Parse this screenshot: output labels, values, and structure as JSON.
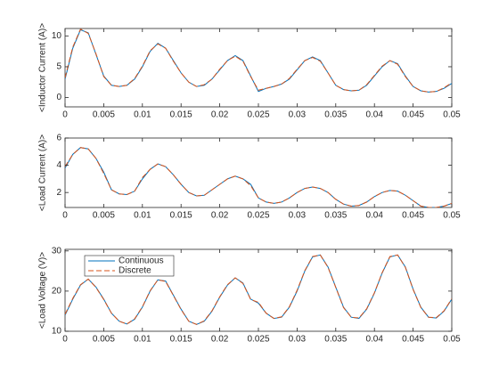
{
  "chart_data": [
    {
      "type": "line",
      "ylabel": "<Inductor Current (A)>",
      "x": [
        0,
        0.001,
        0.002,
        0.003,
        0.004,
        0.005,
        0.006,
        0.007,
        0.008,
        0.009,
        0.01,
        0.011,
        0.012,
        0.013,
        0.014,
        0.015,
        0.016,
        0.017,
        0.018,
        0.019,
        0.02,
        0.021,
        0.022,
        0.023,
        0.024,
        0.025,
        0.026,
        0.027,
        0.028,
        0.029,
        0.03,
        0.031,
        0.032,
        0.033,
        0.034,
        0.035,
        0.036,
        0.037,
        0.038,
        0.039,
        0.04,
        0.041,
        0.042,
        0.043,
        0.044,
        0.045,
        0.046,
        0.047,
        0.048,
        0.049,
        0.05
      ],
      "series": [
        {
          "name": "Continuous",
          "color": "#0072BD",
          "linestyle": "solid",
          "values": [
            3,
            8,
            11,
            10.5,
            7,
            3.5,
            2,
            1.8,
            2,
            3,
            5,
            7.5,
            8.8,
            8,
            6,
            4,
            2.5,
            1.8,
            2,
            3,
            4.5,
            6,
            6.8,
            6,
            3.5,
            1,
            1.5,
            1.8,
            2.2,
            3,
            4.5,
            6,
            6.6,
            6,
            4,
            2,
            1.3,
            1.1,
            1.2,
            2,
            3.5,
            5,
            6,
            5.5,
            3.5,
            1.8,
            1.1,
            0.9,
            1,
            1.5,
            2.3
          ]
        },
        {
          "name": "Discrete",
          "color": "#D95319",
          "linestyle": "dashed",
          "values": [
            3.2,
            8.2,
            11.1,
            10.4,
            7.1,
            3.4,
            2,
            1.8,
            2,
            3.1,
            5.1,
            7.6,
            8.7,
            8,
            5.9,
            4,
            2.5,
            1.8,
            2.1,
            3,
            4.6,
            6,
            6.7,
            5.9,
            3.4,
            1.2,
            1.5,
            1.8,
            2.2,
            3.1,
            4.6,
            6,
            6.5,
            5.9,
            4,
            2,
            1.3,
            1.1,
            1.2,
            2.1,
            3.6,
            5.1,
            6,
            5.4,
            3.4,
            1.8,
            1.1,
            0.9,
            1,
            1.6,
            2.4
          ]
        }
      ],
      "xlim": [
        0,
        0.05
      ],
      "xticks": [
        0,
        0.005,
        0.01,
        0.015,
        0.02,
        0.025,
        0.03,
        0.035,
        0.04,
        0.045,
        0.05
      ],
      "ylim": [
        -1.5,
        11.2
      ],
      "yticks": [
        0,
        5,
        10
      ]
    },
    {
      "type": "line",
      "ylabel": "<Load Current (A)>",
      "x": [
        0,
        0.001,
        0.002,
        0.003,
        0.004,
        0.005,
        0.006,
        0.007,
        0.008,
        0.009,
        0.01,
        0.011,
        0.012,
        0.013,
        0.014,
        0.015,
        0.016,
        0.017,
        0.018,
        0.019,
        0.02,
        0.021,
        0.022,
        0.023,
        0.024,
        0.025,
        0.026,
        0.027,
        0.028,
        0.029,
        0.03,
        0.031,
        0.032,
        0.033,
        0.034,
        0.035,
        0.036,
        0.037,
        0.038,
        0.039,
        0.04,
        0.041,
        0.042,
        0.043,
        0.044,
        0.045,
        0.046,
        0.047,
        0.048,
        0.049,
        0.05
      ],
      "series": [
        {
          "name": "Continuous",
          "color": "#0072BD",
          "linestyle": "solid",
          "values": [
            3.8,
            4.8,
            5.3,
            5.2,
            4.5,
            3.5,
            2.2,
            1.9,
            1.85,
            2.1,
            3,
            3.7,
            4.1,
            3.9,
            3.3,
            2.6,
            2,
            1.75,
            1.8,
            2.2,
            2.6,
            3,
            3.2,
            3,
            2.6,
            1.6,
            1.3,
            1.2,
            1.3,
            1.6,
            2,
            2.3,
            2.4,
            2.3,
            2,
            1.5,
            1.15,
            1,
            1.05,
            1.3,
            1.7,
            2,
            2.15,
            2.1,
            1.8,
            1.4,
            1,
            0.9,
            0.9,
            1,
            1.2
          ]
        },
        {
          "name": "Discrete",
          "color": "#D95319",
          "linestyle": "dashed",
          "values": [
            3.9,
            4.8,
            5.3,
            5.2,
            4.5,
            3.4,
            2.2,
            1.9,
            1.85,
            2.1,
            3.1,
            3.7,
            4.1,
            3.9,
            3.3,
            2.6,
            2,
            1.75,
            1.8,
            2.2,
            2.6,
            3,
            3.2,
            3,
            2.5,
            1.6,
            1.3,
            1.2,
            1.3,
            1.6,
            2,
            2.3,
            2.4,
            2.3,
            2,
            1.5,
            1.15,
            1,
            1.05,
            1.3,
            1.7,
            2,
            2.15,
            2.1,
            1.8,
            1.4,
            1,
            0.9,
            0.9,
            1,
            1.2
          ]
        }
      ],
      "xlim": [
        0,
        0.05
      ],
      "xticks": [
        0,
        0.005,
        0.01,
        0.015,
        0.02,
        0.025,
        0.03,
        0.035,
        0.04,
        0.045,
        0.05
      ],
      "ylim": [
        0.9,
        6
      ],
      "yticks": [
        2,
        4,
        6
      ]
    },
    {
      "type": "line",
      "ylabel": "<Load Voltage (V)>",
      "legend": "northwest",
      "x": [
        0,
        0.001,
        0.002,
        0.003,
        0.004,
        0.005,
        0.006,
        0.007,
        0.008,
        0.009,
        0.01,
        0.011,
        0.012,
        0.013,
        0.014,
        0.015,
        0.016,
        0.017,
        0.018,
        0.019,
        0.02,
        0.021,
        0.022,
        0.023,
        0.024,
        0.025,
        0.026,
        0.027,
        0.028,
        0.029,
        0.03,
        0.031,
        0.032,
        0.033,
        0.034,
        0.035,
        0.036,
        0.037,
        0.038,
        0.039,
        0.04,
        0.041,
        0.042,
        0.043,
        0.044,
        0.045,
        0.046,
        0.047,
        0.048,
        0.049,
        0.05
      ],
      "series": [
        {
          "name": "Continuous",
          "color": "#0072BD",
          "linestyle": "solid",
          "values": [
            14,
            18,
            21.5,
            23,
            21,
            18,
            14.5,
            12.5,
            11.8,
            13,
            16,
            20,
            22.8,
            22.5,
            19,
            15.5,
            12.5,
            11.7,
            12.5,
            15,
            18.5,
            21.5,
            23.3,
            22,
            18,
            17,
            14.5,
            13.2,
            13.5,
            16,
            20,
            25,
            28.5,
            29,
            26,
            21,
            16,
            13.5,
            13.2,
            15.5,
            19.5,
            24.5,
            28.5,
            29,
            26,
            20.5,
            16,
            13.5,
            13.3,
            15,
            18
          ]
        },
        {
          "name": "Discrete",
          "color": "#D95319",
          "linestyle": "dashed",
          "values": [
            14.2,
            18.2,
            21.6,
            23,
            20.9,
            17.9,
            14.5,
            12.5,
            11.8,
            13.1,
            16.1,
            20.1,
            22.8,
            22.4,
            18.9,
            15.4,
            12.5,
            11.7,
            12.6,
            15.1,
            18.6,
            21.6,
            23.3,
            21.9,
            17.9,
            17.2,
            14.5,
            13.2,
            13.6,
            16.1,
            20.2,
            25.1,
            28.6,
            29,
            25.9,
            20.9,
            15.9,
            13.5,
            13.3,
            15.6,
            19.6,
            24.6,
            28.6,
            29,
            25.9,
            20.4,
            15.9,
            13.5,
            13.4,
            15.1,
            18.1
          ]
        }
      ],
      "xlim": [
        0,
        0.05
      ],
      "xticks": [
        0,
        0.005,
        0.01,
        0.015,
        0.02,
        0.025,
        0.03,
        0.035,
        0.04,
        0.045,
        0.05
      ],
      "ylim": [
        10,
        30.4
      ],
      "yticks": [
        10,
        20,
        30
      ]
    }
  ]
}
